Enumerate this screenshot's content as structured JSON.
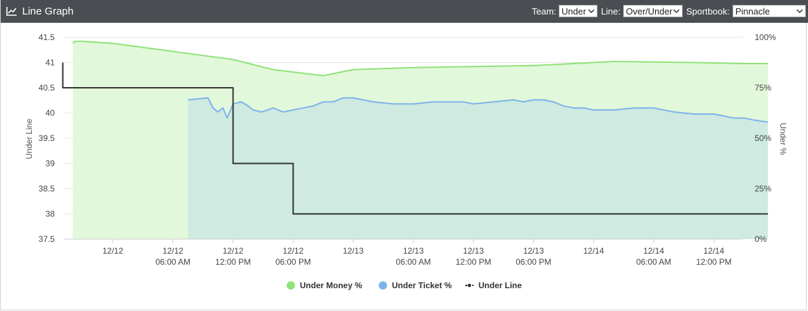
{
  "header": {
    "title": "Line Graph",
    "icon": "line-chart-icon",
    "team_label": "Team:",
    "team_value": "Under",
    "line_label": "Line:",
    "line_value": "Over/Under",
    "sportbook_label": "Sportbook:",
    "sportbook_value": "Pinnacle"
  },
  "chart_data": {
    "type": "line",
    "title": "",
    "y_left_label": "Under Line",
    "y_right_label": "Under %",
    "y_left_ticks": [
      "37.5",
      "38",
      "38.5",
      "39",
      "39.5",
      "40",
      "40.5",
      "41",
      "41.5"
    ],
    "y_left_range": [
      37.5,
      41.5
    ],
    "y_right_ticks": [
      "0%",
      "25%",
      "50%",
      "75%",
      "100%"
    ],
    "y_right_range": [
      0,
      100
    ],
    "x_ticks": [
      {
        "l1": "12/12",
        "l2": ""
      },
      {
        "l1": "12/12",
        "l2": "06:00 AM"
      },
      {
        "l1": "12/12",
        "l2": "12:00 PM"
      },
      {
        "l1": "12/12",
        "l2": "06:00 PM"
      },
      {
        "l1": "12/13",
        "l2": ""
      },
      {
        "l1": "12/13",
        "l2": "06:00 AM"
      },
      {
        "l1": "12/13",
        "l2": "12:00 PM"
      },
      {
        "l1": "12/13",
        "l2": "06:00 PM"
      },
      {
        "l1": "12/14",
        "l2": ""
      },
      {
        "l1": "12/14",
        "l2": "06:00 AM"
      },
      {
        "l1": "12/14",
        "l2": "12:00 PM"
      }
    ],
    "x_axis": "hours relative to 12/12 12:00 AM",
    "series": [
      {
        "name": "Under Money %",
        "color": "#90e27a",
        "fill": "#e2f8da",
        "axis": "right",
        "x": [
          -4,
          -3.8,
          -3,
          0,
          6,
          12,
          16,
          21,
          24,
          30,
          36,
          42,
          50,
          58,
          63,
          65.4
        ],
        "y": [
          97,
          98,
          98,
          97,
          93,
          89,
          84,
          81,
          84,
          85,
          85.5,
          86,
          88,
          87.5,
          87,
          87
        ]
      },
      {
        "name": "Under Ticket %",
        "color": "#7db3ea",
        "fill": "#cde8e1",
        "axis": "right",
        "x": [
          7.5,
          9.5,
          10,
          10.5,
          11,
          11.4,
          12,
          12.8,
          13.5,
          14,
          14.8,
          15.5,
          16,
          17,
          18,
          19,
          20,
          21,
          22,
          23,
          24,
          25,
          26,
          28,
          30,
          32,
          35,
          36,
          38,
          40,
          41,
          42,
          43,
          44,
          45,
          46,
          47,
          48,
          50,
          52,
          54,
          56,
          58,
          59,
          60,
          61,
          62,
          63,
          64,
          65.4
        ],
        "y": [
          69,
          70,
          65,
          63,
          65,
          60,
          67,
          68,
          66,
          64,
          63,
          64,
          65,
          63,
          64,
          65,
          66,
          68,
          68,
          70,
          70,
          69,
          68,
          67,
          67,
          68,
          68,
          67,
          68,
          69,
          68,
          69,
          69,
          68,
          66,
          65,
          65,
          64,
          64,
          65,
          65,
          63,
          62,
          62,
          62,
          61,
          60,
          60,
          59,
          58
        ]
      },
      {
        "name": "Under Line",
        "color": "#333333",
        "axis": "left",
        "step": true,
        "x": [
          -5,
          -5,
          12,
          12,
          18,
          18,
          65.4
        ],
        "y": [
          41,
          40.5,
          40.5,
          39,
          39,
          38,
          38
        ]
      }
    ],
    "legend": "bottom-center"
  }
}
